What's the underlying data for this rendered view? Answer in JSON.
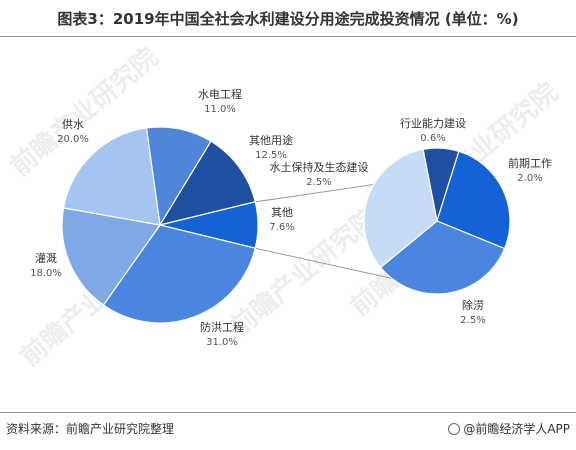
{
  "title": "图表3：2019年中国全社会水利建设分用途完成投资情况 (单位：%)",
  "footer": {
    "source": "资料来源：前瞻产业研究院整理",
    "brand": "@前瞻经济学人APP"
  },
  "watermark": "前瞻产业研究院",
  "chart_data": [
    {
      "type": "pie",
      "slices": [
        {
          "label": "水电工程",
          "value": 11.0,
          "display": "11.0%",
          "color": "#4f86d9"
        },
        {
          "label": "其他用途",
          "value": 12.5,
          "display": "12.5%",
          "color": "#1f4fa0"
        },
        {
          "label": "其他",
          "value": 7.6,
          "display": "7.6%",
          "color": "#1463d6"
        },
        {
          "label": "防洪工程",
          "value": 31.0,
          "display": "31.0%",
          "color": "#4a86e0"
        },
        {
          "label": "灌溉",
          "value": 18.0,
          "display": "18.0%",
          "color": "#7fa9e6"
        },
        {
          "label": "供水",
          "value": 20.0,
          "display": "20.0%",
          "color": "#a6c4f0"
        }
      ]
    },
    {
      "type": "pie",
      "slices": [
        {
          "label": "行业能力建设",
          "value": 0.6,
          "display": "0.6%",
          "color": "#1f4fa0"
        },
        {
          "label": "前期工作",
          "value": 2.0,
          "display": "2.0%",
          "color": "#1463d6"
        },
        {
          "label": "除涝",
          "value": 2.5,
          "display": "2.5%",
          "color": "#4a86e0"
        },
        {
          "label": "水土保持及生态建设",
          "value": 2.5,
          "display": "2.5%",
          "color": "#c6dbf6"
        }
      ]
    }
  ]
}
